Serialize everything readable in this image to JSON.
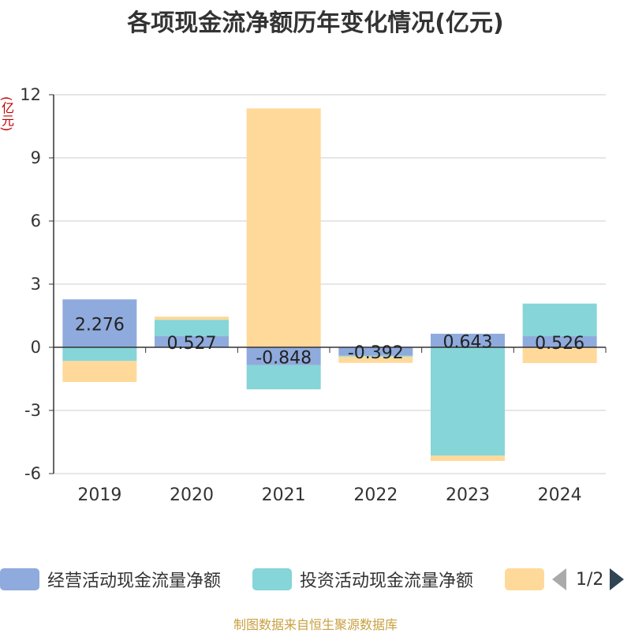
{
  "title": "各项现金流净额历年变化情况(亿元)",
  "unit_label": "(亿元)",
  "source": "制图数据来自恒生聚源数据库",
  "legend": {
    "items": [
      {
        "label": "经营活动现金流量净额",
        "color": "#8faadc"
      },
      {
        "label": "投资活动现金流量净额",
        "color": "#86d5d8"
      },
      {
        "label": "",
        "color": "#ffd99a"
      }
    ],
    "page": "1/2"
  },
  "chart_data": {
    "type": "bar",
    "stacked": true,
    "categories": [
      "2019",
      "2020",
      "2021",
      "2022",
      "2023",
      "2024"
    ],
    "ylim": [
      -6,
      12
    ],
    "yticks": [
      -6,
      -3,
      0,
      3,
      6,
      9,
      12
    ],
    "ytick_labels": [
      "-6",
      "-3",
      "0",
      "3",
      "6",
      "9",
      "12"
    ],
    "grid": true,
    "legend_position": "bottom",
    "series": [
      {
        "name": "经营活动现金流量净额",
        "color": "#8faadc",
        "values": [
          2.276,
          0.527,
          -0.848,
          -0.392,
          0.643,
          0.526
        ],
        "labels": [
          "2.276",
          "0.527",
          "-0.848",
          "-0.392",
          "0.643",
          "0.526"
        ]
      },
      {
        "name": "投资活动现金流量净额",
        "color": "#86d5d8",
        "values": [
          -0.65,
          0.78,
          -1.15,
          -0.05,
          -5.15,
          1.55
        ]
      },
      {
        "color": "#ffd99a",
        "values": [
          -1.0,
          0.15,
          11.35,
          -0.3,
          -0.25,
          -0.75
        ]
      }
    ]
  }
}
